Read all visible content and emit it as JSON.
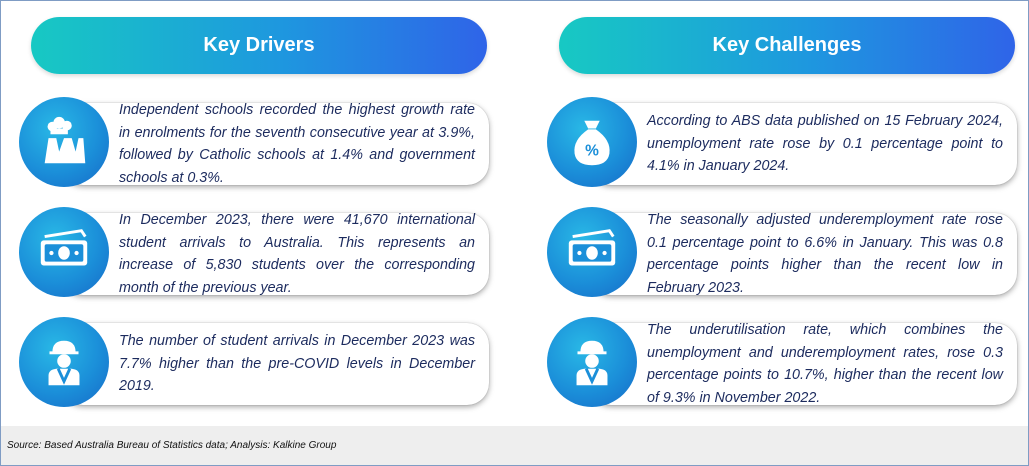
{
  "drivers": {
    "title": "Key Drivers",
    "cards": [
      {
        "icon": "factory-icon",
        "text": "Independent schools recorded the highest growth rate in enrolments for the seventh consecutive year at 3.9%, followed by Catholic schools at 1.4% and government schools at 0.3%."
      },
      {
        "icon": "cash-icon",
        "text": "In December 2023, there were 41,670 international student arrivals to Australia. This represents an increase of 5,830 students over the corresponding month of the previous year."
      },
      {
        "icon": "worker-icon",
        "text": "The number of student arrivals in December 2023 was 7.7% higher than the pre-COVID levels in December 2019."
      }
    ]
  },
  "challenges": {
    "title": "Key Challenges",
    "cards": [
      {
        "icon": "money-bag-percent-icon",
        "text": "According to ABS data published on 15 February 2024, unemployment rate rose by 0.1 percentage point to 4.1% in January 2024."
      },
      {
        "icon": "cash-icon",
        "text": "The seasonally adjusted underemployment rate rose 0.1 percentage point to 6.6% in January. This was 0.8 percentage points higher than the recent low in February 2023."
      },
      {
        "icon": "worker-icon",
        "text": "The underutilisation rate, which combines the unemployment and underemployment rates, rose 0.3 percentage points to 10.7%, higher than the recent low of 9.3% in November 2022."
      }
    ]
  },
  "footer": {
    "source": "Source: Based Australia Bureau of Statistics data; Analysis: Kalkine Group"
  },
  "colors": {
    "pill_start": "#17c9c3",
    "pill_end": "#2f64e8",
    "icon_circle": "#1b8fd9",
    "text": "#1c2b5e"
  }
}
